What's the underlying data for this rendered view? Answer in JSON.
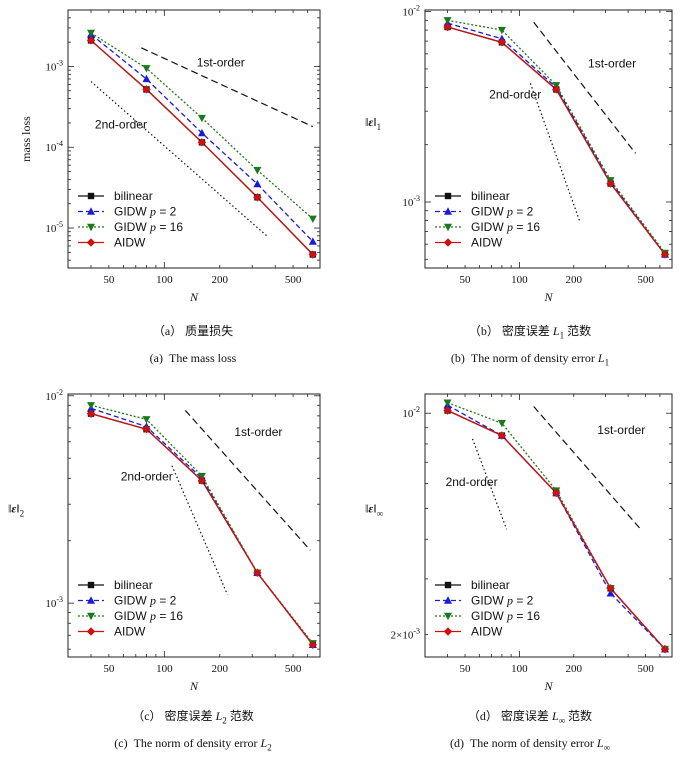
{
  "chart_data": [
    {
      "type": "line",
      "xscale": "log",
      "yscale": "log",
      "xlim": [
        30,
        700
      ],
      "ylim": [
        3.2e-06,
        0.005
      ],
      "xticks": [
        50,
        100,
        200,
        500
      ],
      "yticks": [
        {
          "v": 0.001,
          "t": "10",
          "e": "-3"
        },
        {
          "v": 0.0001,
          "t": "10",
          "e": "-4"
        },
        {
          "v": 1e-05,
          "t": "10",
          "e": "-5"
        }
      ],
      "xlabel": "N",
      "ylabel": "mass loss",
      "ylabel_kind": "plain",
      "caption_cn": "（a）质量损失",
      "caption_en": "(a)  The mass loss",
      "series": [
        {
          "name": "bilinear",
          "x": [
            40,
            80,
            160,
            320,
            640
          ],
          "y": [
            0.0021,
            0.00052,
            0.000115,
            2.4e-05,
            4.7e-06
          ],
          "color": "#111111",
          "marker": "square",
          "dash": ""
        },
        {
          "name": "GIDW p = 2",
          "x": [
            40,
            80,
            160,
            320,
            640
          ],
          "y": [
            0.0025,
            0.0007,
            0.00015,
            3.5e-05,
            6.8e-06
          ],
          "color": "#1a1adb",
          "marker": "triangle-up",
          "dash": "5,3"
        },
        {
          "name": "GIDW p = 16",
          "x": [
            40,
            80,
            160,
            320,
            640
          ],
          "y": [
            0.0026,
            0.00095,
            0.00023,
            5.2e-05,
            1.3e-05
          ],
          "color": "#1a7a1a",
          "marker": "triangle-down",
          "dash": "2,2"
        },
        {
          "name": "AIDW",
          "x": [
            40,
            80,
            160,
            320,
            640
          ],
          "y": [
            0.0021,
            0.00052,
            0.000115,
            2.4e-05,
            4.7e-06
          ],
          "color": "#cc1111",
          "marker": "diamond",
          "dash": ""
        }
      ],
      "ref_lines": [
        {
          "label": "1st-order",
          "x": [
            75,
            640
          ],
          "y": [
            0.0017,
            0.00018
          ],
          "dash": "7,4",
          "label_x": 150,
          "label_y": 0.001
        },
        {
          "label": "2nd-order",
          "x": [
            40,
            360
          ],
          "y": [
            0.00065,
            8e-06
          ],
          "dash": "1.5,2.5",
          "label_x": 42,
          "label_y": 0.00017
        }
      ],
      "legend": "bottom-left"
    },
    {
      "type": "line",
      "xscale": "log",
      "yscale": "log",
      "xlim": [
        30,
        700
      ],
      "ylim": [
        0.00045,
        0.0102
      ],
      "xticks": [
        50,
        100,
        200,
        500
      ],
      "yticks": [
        {
          "v": 0.01,
          "t": "10",
          "e": "-2"
        },
        {
          "v": 0.001,
          "t": "10",
          "e": "-3"
        }
      ],
      "xlabel": "N",
      "ylabel": "‖ε‖₁",
      "ylabel_kind": "norm",
      "ylabel_sub": "1",
      "caption_cn": "（b）密度误差 L1 范数",
      "caption_en": "(b)  The norm of density error L1",
      "series": [
        {
          "name": "bilinear",
          "x": [
            40,
            80,
            160,
            320,
            640
          ],
          "y": [
            0.0083,
            0.0069,
            0.0039,
            0.00125,
            0.00053
          ],
          "color": "#111111",
          "marker": "square",
          "dash": ""
        },
        {
          "name": "GIDW p = 2",
          "x": [
            40,
            80,
            160,
            320,
            640
          ],
          "y": [
            0.0087,
            0.0072,
            0.004,
            0.00128,
            0.00053
          ],
          "color": "#1a1adb",
          "marker": "triangle-up",
          "dash": "5,3"
        },
        {
          "name": "GIDW p = 16",
          "x": [
            40,
            80,
            160,
            320,
            640
          ],
          "y": [
            0.009,
            0.008,
            0.0041,
            0.0013,
            0.00054
          ],
          "color": "#1a7a1a",
          "marker": "triangle-down",
          "dash": "2,2"
        },
        {
          "name": "AIDW",
          "x": [
            40,
            80,
            160,
            320,
            640
          ],
          "y": [
            0.0083,
            0.0069,
            0.0039,
            0.00125,
            0.00053
          ],
          "color": "#cc1111",
          "marker": "diamond",
          "dash": ""
        }
      ],
      "ref_lines": [
        {
          "label": "1st-order",
          "x": [
            120,
            440
          ],
          "y": [
            0.0088,
            0.0018
          ],
          "dash": "7,4",
          "label_x": 240,
          "label_y": 0.0051
        },
        {
          "label": "2nd-order",
          "x": [
            115,
            215
          ],
          "y": [
            0.0042,
            0.0008
          ],
          "dash": "1.5,2.5",
          "label_x": 68,
          "label_y": 0.0035
        }
      ],
      "legend": "bottom-left"
    },
    {
      "type": "line",
      "xscale": "log",
      "yscale": "log",
      "xlim": [
        30,
        700
      ],
      "ylim": [
        0.00055,
        0.0102
      ],
      "xticks": [
        50,
        100,
        200,
        500
      ],
      "yticks": [
        {
          "v": 0.01,
          "t": "10",
          "e": "-2"
        },
        {
          "v": 0.001,
          "t": "10",
          "e": "-3"
        }
      ],
      "xlabel": "N",
      "ylabel": "‖ε‖₂",
      "ylabel_kind": "norm",
      "ylabel_sub": "2",
      "caption_cn": "（c）密度误差 L2 范数",
      "caption_en": "(c)  The norm of density error L2",
      "series": [
        {
          "name": "bilinear",
          "x": [
            40,
            80,
            160,
            320,
            640
          ],
          "y": [
            0.0082,
            0.0069,
            0.0039,
            0.0014,
            0.00063
          ],
          "color": "#111111",
          "marker": "square",
          "dash": ""
        },
        {
          "name": "GIDW p = 2",
          "x": [
            40,
            80,
            160,
            320,
            640
          ],
          "y": [
            0.0087,
            0.0071,
            0.004,
            0.0014,
            0.00063
          ],
          "color": "#1a1adb",
          "marker": "triangle-up",
          "dash": "5,3"
        },
        {
          "name": "GIDW p = 16",
          "x": [
            40,
            80,
            160,
            320,
            640
          ],
          "y": [
            0.009,
            0.0077,
            0.0041,
            0.0014,
            0.00064
          ],
          "color": "#1a7a1a",
          "marker": "triangle-down",
          "dash": "2,2"
        },
        {
          "name": "AIDW",
          "x": [
            40,
            80,
            160,
            320,
            640
          ],
          "y": [
            0.0082,
            0.0069,
            0.0039,
            0.0014,
            0.00063
          ],
          "color": "#cc1111",
          "marker": "diamond",
          "dash": ""
        }
      ],
      "ref_lines": [
        {
          "label": "1st-order",
          "x": [
            130,
            620
          ],
          "y": [
            0.0085,
            0.0018
          ],
          "dash": "7,4",
          "label_x": 240,
          "label_y": 0.0064
        },
        {
          "label": "2nd-order",
          "x": [
            110,
            220
          ],
          "y": [
            0.0046,
            0.0011
          ],
          "dash": "1.5,2.5",
          "label_x": 58,
          "label_y": 0.0039
        }
      ],
      "legend": "bottom-left"
    },
    {
      "type": "line",
      "xscale": "log",
      "yscale": "log",
      "xlim": [
        30,
        700
      ],
      "ylim": [
        0.0017,
        0.0115
      ],
      "xticks": [
        50,
        100,
        200,
        500
      ],
      "yticks": [
        {
          "v": 0.01,
          "t": "10",
          "e": "-2"
        },
        {
          "v": 0.002,
          "t": "2×10",
          "e": "-3"
        }
      ],
      "xlabel": "N",
      "ylabel": "‖ε‖∞",
      "ylabel_kind": "norm",
      "ylabel_sub": "∞",
      "caption_cn": "（d）密度误差 L∞ 范数",
      "caption_en": "(d)  The norm of density error L∞",
      "series": [
        {
          "name": "bilinear",
          "x": [
            40,
            80,
            160,
            320,
            640
          ],
          "y": [
            0.0102,
            0.0085,
            0.0056,
            0.0028,
            0.0018
          ],
          "color": "#111111",
          "marker": "square",
          "dash": ""
        },
        {
          "name": "GIDW p = 2",
          "x": [
            40,
            80,
            160,
            320,
            640
          ],
          "y": [
            0.0106,
            0.0085,
            0.0056,
            0.0027,
            0.0018
          ],
          "color": "#1a1adb",
          "marker": "triangle-up",
          "dash": "5,3"
        },
        {
          "name": "GIDW p = 16",
          "x": [
            40,
            80,
            160,
            320,
            640
          ],
          "y": [
            0.0108,
            0.0093,
            0.0057,
            0.0028,
            0.0018
          ],
          "color": "#1a7a1a",
          "marker": "triangle-down",
          "dash": "2,2"
        },
        {
          "name": "AIDW",
          "x": [
            40,
            80,
            160,
            320,
            640
          ],
          "y": [
            0.0102,
            0.0085,
            0.0056,
            0.0028,
            0.0018
          ],
          "color": "#cc1111",
          "marker": "diamond",
          "dash": ""
        }
      ],
      "ref_lines": [
        {
          "label": "1st-order",
          "x": [
            120,
            470
          ],
          "y": [
            0.0105,
            0.0043
          ],
          "dash": "7,4",
          "label_x": 270,
          "label_y": 0.0086
        },
        {
          "label": "2nd-order",
          "x": [
            55,
            85
          ],
          "y": [
            0.0083,
            0.0043
          ],
          "dash": "1.5,2.5",
          "label_x": 39,
          "label_y": 0.0059
        }
      ],
      "legend": "bottom-left"
    }
  ]
}
